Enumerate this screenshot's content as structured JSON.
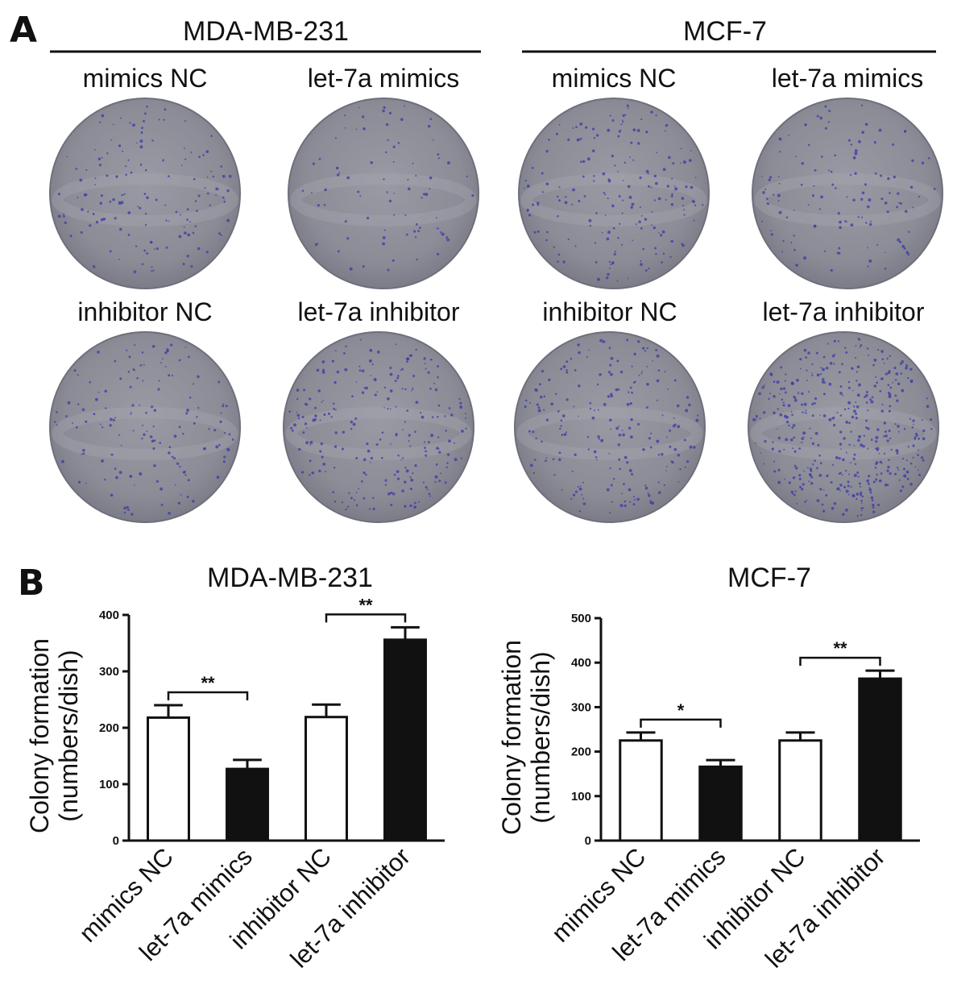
{
  "panel_a": {
    "letter": "A",
    "groups": [
      {
        "cell_line": "MDA-MB-231",
        "dishes": [
          {
            "label": "mimics NC",
            "colony_density": 0.35
          },
          {
            "label": "let-7a mimics",
            "colony_density": 0.2
          },
          {
            "label": "inhibitor NC",
            "colony_density": 0.35
          },
          {
            "label": "let-7a inhibitor",
            "colony_density": 0.55
          }
        ]
      },
      {
        "cell_line": "MCF-7",
        "dishes": [
          {
            "label": "mimics NC",
            "colony_density": 0.45
          },
          {
            "label": "let-7a mimics",
            "colony_density": 0.3
          },
          {
            "label": "inhibitor NC",
            "colony_density": 0.5
          },
          {
            "label": "let-7a inhibitor",
            "colony_density": 1.0
          }
        ]
      }
    ],
    "colors": {
      "dish": "#8d8d99",
      "dish_edge": "#6f6f7c",
      "colony": "#3a3aa8"
    }
  },
  "panel_b": {
    "letter": "B"
  },
  "chart_data": [
    {
      "type": "bar",
      "title": "MDA-MB-231",
      "ylabel": "Colony formation\n(numbers/dish)",
      "xlabel": "",
      "categories": [
        "mimics NC",
        "let-7a mimics",
        "inhibitor NC",
        "let-7a inhibitor"
      ],
      "values": [
        218,
        127,
        219,
        356
      ],
      "errors": [
        22,
        16,
        22,
        22
      ],
      "fills": [
        "white",
        "black",
        "white",
        "black"
      ],
      "ylim": [
        0,
        400
      ],
      "yticks": [
        0,
        100,
        200,
        300,
        400
      ],
      "significance": [
        {
          "from": 0,
          "to": 1,
          "label": "**"
        },
        {
          "from": 2,
          "to": 3,
          "label": "**"
        }
      ]
    },
    {
      "type": "bar",
      "title": "MCF-7",
      "ylabel": "Colony formation\n(numbers/dish)",
      "xlabel": "",
      "categories": [
        "mimics NC",
        "let-7a mimics",
        "inhibitor NC",
        "let-7a inhibitor"
      ],
      "values": [
        225,
        166,
        225,
        364
      ],
      "errors": [
        18,
        15,
        18,
        18
      ],
      "fills": [
        "white",
        "black",
        "white",
        "black"
      ],
      "ylim": [
        0,
        500
      ],
      "yticks": [
        0,
        100,
        200,
        300,
        400,
        500
      ],
      "significance": [
        {
          "from": 0,
          "to": 1,
          "label": "*"
        },
        {
          "from": 2,
          "to": 3,
          "label": "**"
        }
      ]
    }
  ]
}
